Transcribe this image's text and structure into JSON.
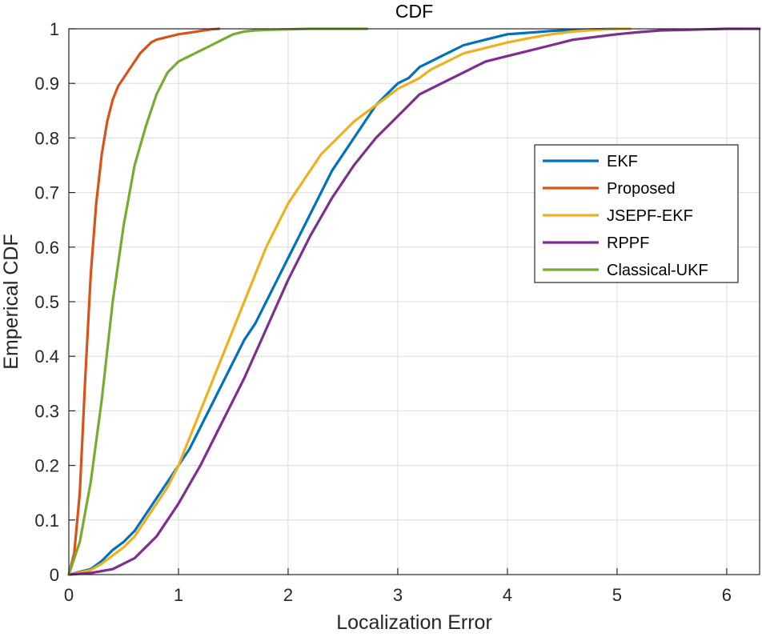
{
  "chart_data": {
    "type": "line",
    "title": "CDF",
    "xlabel": "Localization Error",
    "ylabel": "Emperical CDF",
    "xlim": [
      0,
      6.3
    ],
    "ylim": [
      0,
      1
    ],
    "xticks": [
      "0",
      "1",
      "2",
      "3",
      "4",
      "5",
      "6"
    ],
    "yticks": [
      "0",
      "0.1",
      "0.2",
      "0.3",
      "0.4",
      "0.5",
      "0.6",
      "0.7",
      "0.8",
      "0.9",
      "1"
    ],
    "grid": true,
    "legend_position": "right-upper",
    "series": [
      {
        "name": "EKF",
        "color": "#0072BD",
        "x": [
          0,
          0.1,
          0.2,
          0.3,
          0.4,
          0.5,
          0.6,
          0.7,
          0.8,
          0.9,
          1.0,
          1.1,
          1.2,
          1.3,
          1.4,
          1.5,
          1.6,
          1.7,
          1.8,
          1.9,
          2.0,
          2.1,
          2.2,
          2.3,
          2.4,
          2.5,
          2.6,
          2.7,
          2.8,
          2.9,
          3.0,
          3.1,
          3.2,
          3.3,
          3.4,
          3.5,
          3.6,
          3.7,
          3.8,
          3.9,
          4.0,
          4.2,
          4.4,
          4.6,
          4.8,
          5.0
        ],
        "y": [
          0,
          0.005,
          0.01,
          0.025,
          0.045,
          0.06,
          0.08,
          0.11,
          0.14,
          0.17,
          0.2,
          0.23,
          0.27,
          0.31,
          0.35,
          0.39,
          0.43,
          0.46,
          0.5,
          0.54,
          0.58,
          0.62,
          0.66,
          0.7,
          0.74,
          0.77,
          0.8,
          0.83,
          0.86,
          0.88,
          0.9,
          0.91,
          0.93,
          0.94,
          0.95,
          0.96,
          0.97,
          0.975,
          0.98,
          0.985,
          0.99,
          0.993,
          0.996,
          0.998,
          0.999,
          1.0
        ]
      },
      {
        "name": "Proposed",
        "color": "#D95319",
        "x": [
          0,
          0.05,
          0.1,
          0.15,
          0.2,
          0.25,
          0.3,
          0.35,
          0.4,
          0.45,
          0.5,
          0.55,
          0.6,
          0.65,
          0.7,
          0.75,
          0.8,
          0.9,
          1.0,
          1.1,
          1.2,
          1.3,
          1.37
        ],
        "y": [
          0,
          0.04,
          0.15,
          0.36,
          0.55,
          0.68,
          0.77,
          0.83,
          0.87,
          0.895,
          0.91,
          0.925,
          0.94,
          0.955,
          0.965,
          0.975,
          0.98,
          0.985,
          0.99,
          0.993,
          0.996,
          0.999,
          1.0
        ]
      },
      {
        "name": "JSEPF-EKF",
        "color": "#EDB120",
        "x": [
          0,
          0.1,
          0.2,
          0.3,
          0.4,
          0.5,
          0.6,
          0.7,
          0.8,
          0.9,
          1.0,
          1.1,
          1.2,
          1.3,
          1.4,
          1.5,
          1.6,
          1.7,
          1.8,
          1.9,
          2.0,
          2.1,
          2.2,
          2.3,
          2.4,
          2.5,
          2.6,
          2.7,
          2.8,
          2.9,
          3.0,
          3.1,
          3.2,
          3.3,
          3.4,
          3.5,
          3.6,
          3.7,
          3.8,
          3.9,
          4.0,
          4.2,
          4.4,
          4.6,
          4.8,
          5.0,
          5.12
        ],
        "y": [
          0,
          0.004,
          0.008,
          0.02,
          0.035,
          0.05,
          0.07,
          0.1,
          0.13,
          0.16,
          0.2,
          0.25,
          0.3,
          0.35,
          0.4,
          0.45,
          0.5,
          0.55,
          0.6,
          0.64,
          0.68,
          0.71,
          0.74,
          0.77,
          0.79,
          0.81,
          0.83,
          0.845,
          0.86,
          0.875,
          0.89,
          0.9,
          0.91,
          0.925,
          0.935,
          0.945,
          0.955,
          0.96,
          0.965,
          0.97,
          0.975,
          0.983,
          0.99,
          0.995,
          0.998,
          1.0,
          1.0
        ]
      },
      {
        "name": "RPPF",
        "color": "#7E2F8E",
        "x": [
          0,
          0.2,
          0.4,
          0.6,
          0.8,
          1.0,
          1.2,
          1.4,
          1.6,
          1.8,
          2.0,
          2.2,
          2.4,
          2.6,
          2.8,
          3.0,
          3.2,
          3.4,
          3.6,
          3.8,
          4.0,
          4.2,
          4.4,
          4.6,
          4.8,
          5.0,
          5.2,
          5.4,
          5.6,
          5.8,
          6.0,
          6.3
        ],
        "y": [
          0,
          0.003,
          0.01,
          0.03,
          0.07,
          0.13,
          0.2,
          0.28,
          0.36,
          0.45,
          0.54,
          0.62,
          0.69,
          0.75,
          0.8,
          0.84,
          0.88,
          0.9,
          0.92,
          0.94,
          0.95,
          0.96,
          0.97,
          0.98,
          0.985,
          0.99,
          0.994,
          0.997,
          0.998,
          0.999,
          1.0,
          1.0
        ]
      },
      {
        "name": "Classical-UKF",
        "color": "#77AC30",
        "x": [
          0,
          0.1,
          0.2,
          0.3,
          0.4,
          0.5,
          0.6,
          0.7,
          0.8,
          0.9,
          1.0,
          1.1,
          1.2,
          1.3,
          1.4,
          1.5,
          1.6,
          1.7,
          1.8,
          2.0,
          2.2,
          2.4,
          2.72
        ],
        "y": [
          0,
          0.06,
          0.17,
          0.32,
          0.5,
          0.64,
          0.75,
          0.82,
          0.88,
          0.92,
          0.94,
          0.95,
          0.96,
          0.97,
          0.98,
          0.99,
          0.995,
          0.997,
          0.998,
          0.999,
          1.0,
          1.0,
          1.0
        ]
      }
    ]
  }
}
